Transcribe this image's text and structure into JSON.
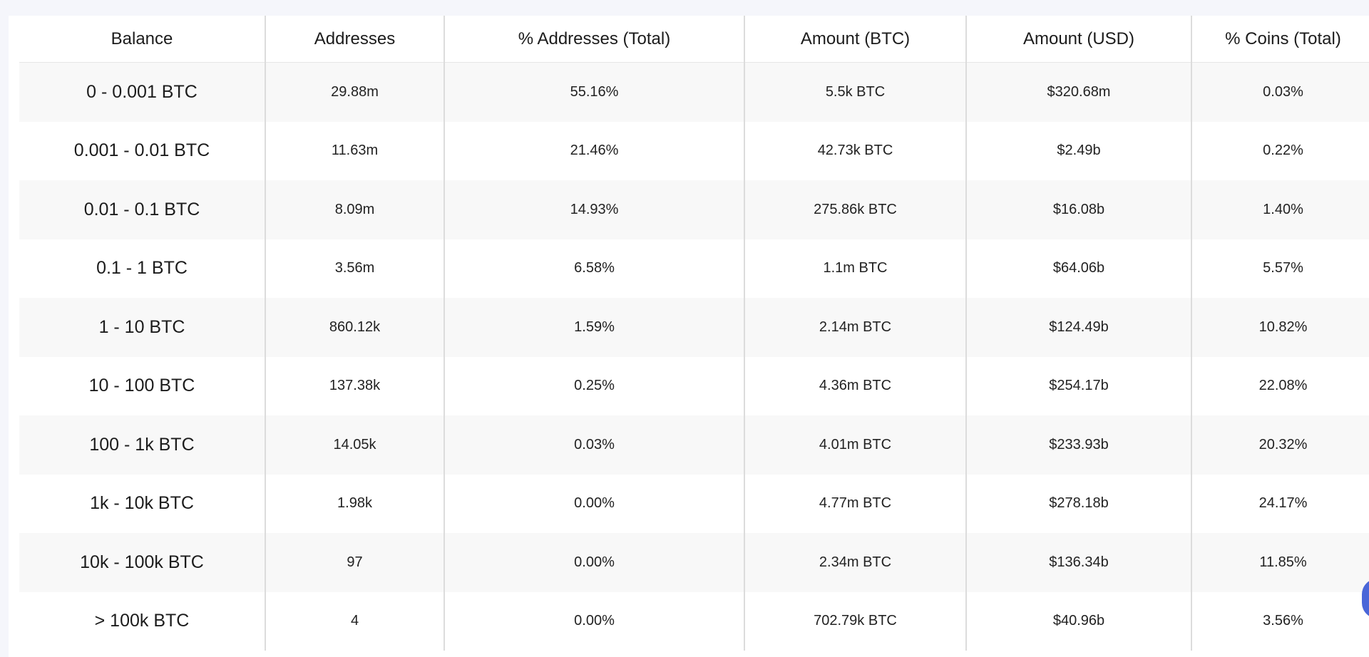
{
  "table": {
    "headers": [
      "Balance",
      "Addresses",
      "% Addresses (Total)",
      "Amount (BTC)",
      "Amount (USD)",
      "% Coins (Total)"
    ],
    "rows": [
      [
        "0 - 0.001 BTC",
        "29.88m",
        "55.16%",
        "5.5k BTC",
        "$320.68m",
        "0.03%"
      ],
      [
        "0.001 - 0.01 BTC",
        "11.63m",
        "21.46%",
        "42.73k BTC",
        "$2.49b",
        "0.22%"
      ],
      [
        "0.01 - 0.1 BTC",
        "8.09m",
        "14.93%",
        "275.86k BTC",
        "$16.08b",
        "1.40%"
      ],
      [
        "0.1 - 1 BTC",
        "3.56m",
        "6.58%",
        "1.1m BTC",
        "$64.06b",
        "5.57%"
      ],
      [
        "1 - 10 BTC",
        "860.12k",
        "1.59%",
        "2.14m BTC",
        "$124.49b",
        "10.82%"
      ],
      [
        "10 - 100 BTC",
        "137.38k",
        "0.25%",
        "4.36m BTC",
        "$254.17b",
        "22.08%"
      ],
      [
        "100 - 1k BTC",
        "14.05k",
        "0.03%",
        "4.01m BTC",
        "$233.93b",
        "20.32%"
      ],
      [
        "1k - 10k BTC",
        "1.98k",
        "0.00%",
        "4.77m BTC",
        "$278.18b",
        "24.17%"
      ],
      [
        "10k - 100k BTC",
        "97",
        "0.00%",
        "2.34m BTC",
        "$136.34b",
        "11.85%"
      ],
      [
        "> 100k BTC",
        "4",
        "0.00%",
        "702.79k BTC",
        "$40.96b",
        "3.56%"
      ]
    ]
  },
  "colors": {
    "page_background": "#f5f6fb",
    "row_stripe": "#f8f8f8",
    "column_divider": "#dcdcdc",
    "floating_button": "#4a66d8"
  }
}
